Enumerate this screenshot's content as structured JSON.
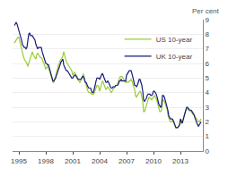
{
  "chart_data": {
    "type": "line",
    "ylabel": "Per cent",
    "x": [
      1994.5,
      1994.6,
      1994.7,
      1994.8,
      1994.9,
      1995.0,
      1995.1,
      1995.2,
      1995.3,
      1995.4,
      1995.5,
      1995.6,
      1995.7,
      1995.8,
      1995.9,
      1996.0,
      1996.1,
      1996.2,
      1996.3,
      1996.4,
      1996.5,
      1996.6,
      1996.7,
      1996.8,
      1996.9,
      1997.0,
      1997.1,
      1997.2,
      1997.3,
      1997.4,
      1997.5,
      1997.6,
      1997.7,
      1997.8,
      1997.9,
      1998.0,
      1998.1,
      1998.2,
      1998.3,
      1998.4,
      1998.5,
      1998.6,
      1998.7,
      1998.8,
      1998.9,
      1999.0,
      1999.1,
      1999.2,
      1999.3,
      1999.4,
      1999.5,
      1999.6,
      1999.7,
      1999.8,
      1999.9,
      2000.0,
      2000.1,
      2000.2,
      2000.3,
      2000.4,
      2000.5,
      2000.6,
      2000.7,
      2000.8,
      2000.9,
      2001.0,
      2001.1,
      2001.2,
      2001.3,
      2001.4,
      2001.5,
      2001.6,
      2001.7,
      2001.8,
      2001.9,
      2002.0,
      2002.1,
      2002.2,
      2002.3,
      2002.4,
      2002.5,
      2002.6,
      2002.7,
      2002.8,
      2002.9,
      2003.0,
      2003.1,
      2003.2,
      2003.3,
      2003.4,
      2003.5,
      2003.6,
      2003.7,
      2003.8,
      2003.9,
      2004.0,
      2004.1,
      2004.2,
      2004.3,
      2004.4,
      2004.5,
      2004.6,
      2004.7,
      2004.8,
      2004.9,
      2005.0,
      2005.1,
      2005.2,
      2005.3,
      2005.4,
      2005.5,
      2005.6,
      2005.7,
      2005.8,
      2005.9,
      2006.0,
      2006.1,
      2006.2,
      2006.3,
      2006.4,
      2006.5,
      2006.6,
      2006.7,
      2006.8,
      2006.9,
      2007.0,
      2007.1,
      2007.2,
      2007.3,
      2007.4,
      2007.5,
      2007.6,
      2007.7,
      2007.8,
      2007.9,
      2008.0,
      2008.1,
      2008.2,
      2008.3,
      2008.4,
      2008.5,
      2008.6,
      2008.7,
      2008.8,
      2008.9,
      2009.0,
      2009.1,
      2009.2,
      2009.3,
      2009.4,
      2009.5,
      2009.6,
      2009.7,
      2009.8,
      2009.9,
      2010.0,
      2010.1,
      2010.2,
      2010.3,
      2010.4,
      2010.5,
      2010.6,
      2010.7,
      2010.8,
      2010.9,
      2011.0,
      2011.1,
      2011.2,
      2011.3,
      2011.4,
      2011.5,
      2011.6,
      2011.7,
      2011.8,
      2011.9,
      2012.0,
      2012.1,
      2012.2,
      2012.3,
      2012.4,
      2012.5,
      2012.6,
      2012.7,
      2012.8,
      2012.9,
      2013.0,
      2013.1,
      2013.2,
      2013.3,
      2013.4,
      2013.5,
      2013.6,
      2013.7,
      2013.8,
      2013.9,
      2014.0,
      2014.1,
      2014.2,
      2014.3,
      2014.4,
      2014.5,
      2014.6,
      2014.7,
      2014.8,
      2014.9,
      2015.0,
      2015.1,
      2015.2,
      2015.3
    ],
    "series": [
      {
        "name": "US 10-year",
        "color": "#99cc33",
        "values": [
          7.4,
          7.5,
          7.6,
          7.7,
          7.8,
          7.8,
          7.5,
          7.2,
          7.0,
          6.8,
          6.5,
          6.3,
          6.2,
          6.1,
          6.0,
          5.8,
          6.0,
          6.2,
          6.5,
          6.7,
          6.8,
          6.6,
          6.5,
          6.4,
          6.3,
          6.6,
          6.7,
          6.6,
          6.5,
          6.4,
          6.4,
          6.3,
          6.1,
          6.0,
          5.8,
          5.6,
          5.7,
          5.8,
          5.7,
          5.5,
          5.4,
          5.1,
          4.9,
          4.7,
          4.7,
          4.9,
          5.1,
          5.3,
          5.6,
          5.9,
          6.0,
          6.2,
          6.3,
          6.4,
          6.5,
          6.8,
          6.5,
          6.3,
          6.1,
          6.0,
          5.9,
          5.8,
          5.7,
          5.6,
          5.5,
          5.2,
          5.3,
          5.4,
          5.3,
          5.2,
          5.1,
          4.9,
          4.8,
          4.7,
          4.8,
          5.0,
          5.2,
          5.3,
          5.0,
          4.7,
          4.6,
          4.3,
          4.1,
          4.0,
          4.0,
          4.0,
          3.9,
          3.9,
          3.9,
          4.0,
          4.2,
          4.4,
          4.5,
          4.5,
          4.4,
          4.1,
          4.3,
          4.6,
          4.8,
          4.7,
          4.5,
          4.3,
          4.2,
          4.3,
          4.4,
          4.3,
          4.2,
          4.1,
          4.0,
          4.1,
          4.2,
          4.3,
          4.4,
          4.5,
          4.5,
          4.6,
          4.8,
          5.0,
          5.1,
          5.1,
          5.1,
          5.0,
          4.9,
          4.8,
          4.7,
          4.8,
          4.7,
          4.7,
          4.8,
          4.8,
          4.9,
          4.8,
          4.6,
          4.5,
          4.2,
          3.8,
          3.7,
          3.8,
          3.9,
          4.0,
          4.1,
          4.0,
          3.7,
          3.4,
          2.7,
          2.7,
          2.9,
          3.1,
          3.4,
          3.6,
          3.7,
          3.6,
          3.6,
          3.5,
          3.6,
          3.7,
          3.8,
          3.7,
          3.6,
          3.4,
          3.1,
          2.9,
          2.7,
          2.7,
          2.8,
          3.4,
          3.5,
          3.4,
          3.2,
          3.0,
          2.9,
          2.5,
          2.2,
          2.1,
          2.0,
          2.0,
          2.1,
          2.0,
          1.9,
          1.7,
          1.6,
          1.6,
          1.6,
          1.7,
          1.7,
          2.0,
          1.9,
          2.0,
          2.2,
          2.4,
          2.7,
          2.8,
          2.9,
          2.9,
          2.8,
          2.8,
          2.7,
          2.7,
          2.6,
          2.5,
          2.5,
          2.4,
          2.3,
          2.2,
          2.1,
          2.0,
          2.0,
          2.1,
          2.2
        ]
      },
      {
        "name": "UK 10-year",
        "color": "#1a1a7a",
        "values": [
          8.6,
          8.7,
          8.8,
          8.7,
          8.5,
          8.3,
          8.1,
          7.9,
          7.6,
          7.3,
          7.2,
          7.1,
          7.1,
          7.0,
          7.1,
          7.8,
          8.0,
          8.1,
          7.9,
          7.9,
          7.9,
          7.8,
          7.7,
          7.6,
          7.3,
          7.1,
          7.0,
          7.1,
          7.1,
          7.1,
          7.1,
          6.8,
          6.6,
          6.5,
          6.2,
          6.0,
          6.0,
          5.9,
          5.9,
          5.7,
          5.5,
          5.3,
          5.0,
          4.8,
          4.8,
          4.9,
          5.0,
          5.2,
          5.4,
          5.6,
          5.7,
          5.9,
          6.1,
          6.2,
          6.3,
          5.9,
          5.7,
          5.6,
          5.5,
          5.5,
          5.4,
          5.3,
          5.2,
          5.1,
          5.0,
          5.0,
          5.1,
          5.2,
          5.2,
          5.1,
          5.0,
          4.9,
          4.9,
          4.9,
          4.9,
          5.0,
          5.1,
          5.1,
          4.9,
          4.7,
          4.7,
          4.5,
          4.4,
          4.3,
          4.3,
          4.3,
          4.1,
          4.0,
          4.0,
          4.2,
          4.5,
          4.8,
          5.0,
          5.0,
          5.0,
          4.9,
          5.1,
          5.2,
          5.3,
          5.2,
          5.0,
          4.8,
          4.7,
          4.7,
          4.8,
          4.7,
          4.5,
          4.4,
          4.3,
          4.3,
          4.4,
          4.4,
          4.4,
          4.5,
          4.5,
          4.5,
          4.6,
          4.8,
          4.8,
          4.9,
          4.8,
          4.8,
          4.8,
          4.8,
          4.8,
          5.2,
          5.3,
          5.4,
          5.5,
          5.5,
          5.5,
          5.3,
          5.1,
          4.8,
          4.5,
          4.5,
          4.4,
          4.5,
          4.7,
          4.9,
          4.9,
          4.7,
          4.5,
          4.1,
          3.5,
          3.4,
          3.5,
          3.6,
          3.8,
          3.9,
          3.9,
          3.9,
          3.8,
          3.8,
          3.9,
          4.1,
          4.1,
          4.0,
          3.9,
          3.7,
          3.4,
          3.2,
          3.1,
          3.0,
          3.1,
          3.8,
          3.8,
          3.7,
          3.5,
          3.3,
          3.1,
          2.8,
          2.4,
          2.3,
          2.2,
          2.2,
          2.2,
          2.1,
          1.9,
          1.7,
          1.6,
          1.6,
          1.6,
          1.7,
          1.8,
          2.2,
          2.0,
          1.9,
          2.1,
          2.4,
          2.6,
          2.8,
          3.0,
          3.0,
          2.9,
          2.8,
          2.8,
          2.8,
          2.7,
          2.6,
          2.5,
          2.3,
          2.1,
          1.9,
          1.8,
          1.7,
          1.8,
          1.9,
          2.0
        ]
      }
    ],
    "xlim": [
      1994.3,
      2015.5
    ],
    "xticks": [
      1995,
      1998,
      2001,
      2004,
      2007,
      2010,
      2013
    ],
    "ylim": [
      0,
      9
    ],
    "yticks": [
      0,
      1,
      2,
      3,
      4,
      5,
      6,
      7,
      8,
      9
    ],
    "grid": "y",
    "legend": "upper right"
  }
}
